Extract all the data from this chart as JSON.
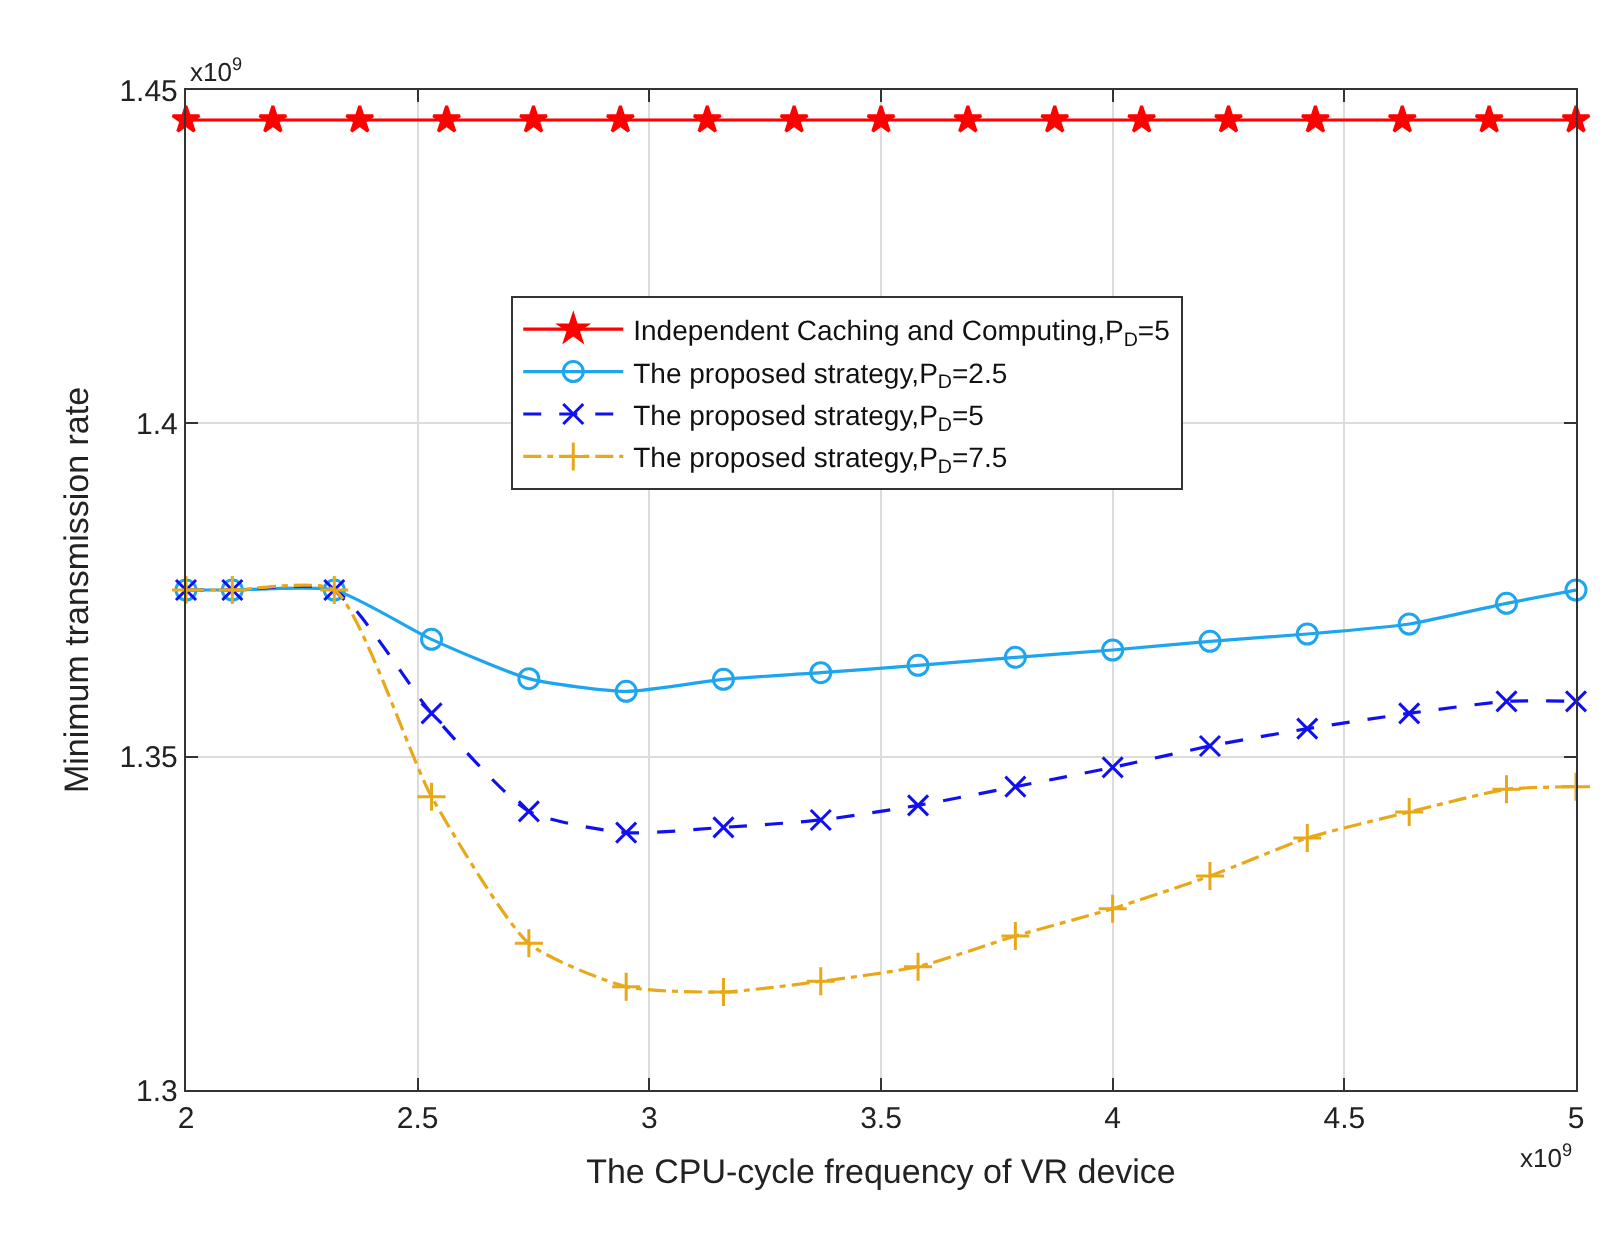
{
  "chart_data": {
    "type": "line",
    "xlabel": "The CPU-cycle frequency of VR device",
    "ylabel": "Minimum transmission rate",
    "xlim": [
      2,
      5
    ],
    "xticks": [
      2,
      2.5,
      3,
      3.5,
      4,
      4.5,
      5
    ],
    "ylim": [
      1.3,
      1.45
    ],
    "yticks": [
      1.3,
      1.35,
      1.4,
      1.45
    ],
    "grid": true,
    "legend": "top right",
    "annotations": [
      "x10$^{9}$",
      "x10$^{9}$"
    ],
    "series": [
      {
        "name": "Independent Caching and Computing,P$_{D}$=5",
        "color": "#ff0000",
        "marker": "star",
        "line_style": "solid",
        "x": [
          2,
          2.1875,
          2.375,
          2.5625,
          2.75,
          2.9375,
          3.125,
          3.3125,
          3.5,
          3.6875,
          3.875,
          4.0625,
          4.25,
          4.4375,
          4.625,
          4.8125,
          5
        ],
        "values": [
          1.4455,
          1.4455,
          1.4455,
          1.4455,
          1.4455,
          1.4455,
          1.4455,
          1.4455,
          1.4455,
          1.4455,
          1.4455,
          1.4455,
          1.4455,
          1.4455,
          1.4455,
          1.4455,
          1.4455
        ]
      },
      {
        "name": "The proposed strategy,P$_{D}$=2.5",
        "color": "#1ea5f0",
        "marker": "circle",
        "line_style": "solid",
        "x": [
          2,
          2.1,
          2.32,
          2.53,
          2.74,
          2.95,
          3.16,
          3.37,
          3.58,
          3.79,
          4.0,
          4.21,
          4.42,
          4.64,
          4.85,
          5
        ],
        "values": [
          1.375,
          1.375,
          1.375,
          1.3676,
          1.3617,
          1.3598,
          1.3616,
          1.3626,
          1.3637,
          1.3649,
          1.366,
          1.3673,
          1.3684,
          1.3699,
          1.373,
          1.375
        ]
      },
      {
        "name": "The proposed strategy,P$_{D}$=5",
        "color": "#1010f0",
        "marker": "cross",
        "line_style": "dashed",
        "x": [
          2,
          2.1,
          2.32,
          2.53,
          2.74,
          2.95,
          3.16,
          3.37,
          3.58,
          3.79,
          4.0,
          4.21,
          4.42,
          4.64,
          4.85,
          5
        ],
        "values": [
          1.375,
          1.375,
          1.375,
          1.3565,
          1.3418,
          1.3386,
          1.3394,
          1.3405,
          1.3427,
          1.3455,
          1.3484,
          1.3516,
          1.3542,
          1.3565,
          1.3583,
          1.3583
        ]
      },
      {
        "name": "The proposed strategy,P$_{D}$=7.5",
        "color": "#e8a817",
        "marker": "plus",
        "line_style": "dashdot",
        "x": [
          2,
          2.1,
          2.32,
          2.53,
          2.74,
          2.95,
          3.16,
          3.37,
          3.58,
          3.79,
          4.0,
          4.21,
          4.42,
          4.64,
          4.85,
          5
        ],
        "values": [
          1.375,
          1.375,
          1.375,
          1.344,
          1.322,
          1.3155,
          1.3147,
          1.3163,
          1.3185,
          1.3231,
          1.3272,
          1.3321,
          1.3378,
          1.3417,
          1.3451,
          1.3455
        ]
      }
    ]
  }
}
